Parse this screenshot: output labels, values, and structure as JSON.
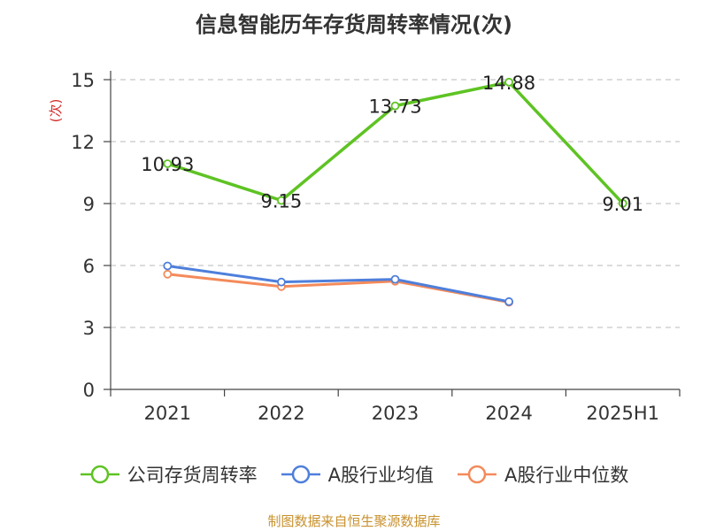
{
  "title": "信息智能历年存货周转率情况(次)",
  "source": "制图数据来自恒生聚源数据库",
  "chart_data": {
    "type": "line",
    "title": "信息智能历年存货周转率情况(次)",
    "ylabel": "(次)",
    "xlabel": "",
    "categories": [
      "2021",
      "2022",
      "2023",
      "2024",
      "2025H1"
    ],
    "ylim": [
      0,
      15
    ],
    "yticks": [
      0,
      3,
      6,
      9,
      12,
      15
    ],
    "grid": true,
    "legend_position": "bottom",
    "series": [
      {
        "name": "公司存货周转率",
        "color": "#5ec323",
        "values": [
          10.93,
          9.15,
          13.73,
          14.88,
          9.01
        ],
        "labels": [
          "10.93",
          "9.15",
          "13.73",
          "14.88",
          "9.01"
        ]
      },
      {
        "name": "A股行业均值",
        "color": "#4e7fdb",
        "values": [
          5.98,
          5.2,
          5.33,
          4.25,
          null
        ]
      },
      {
        "name": "A股行业中位数",
        "color": "#f48a5a",
        "values": [
          5.58,
          4.98,
          5.24,
          4.22,
          null
        ]
      }
    ]
  }
}
